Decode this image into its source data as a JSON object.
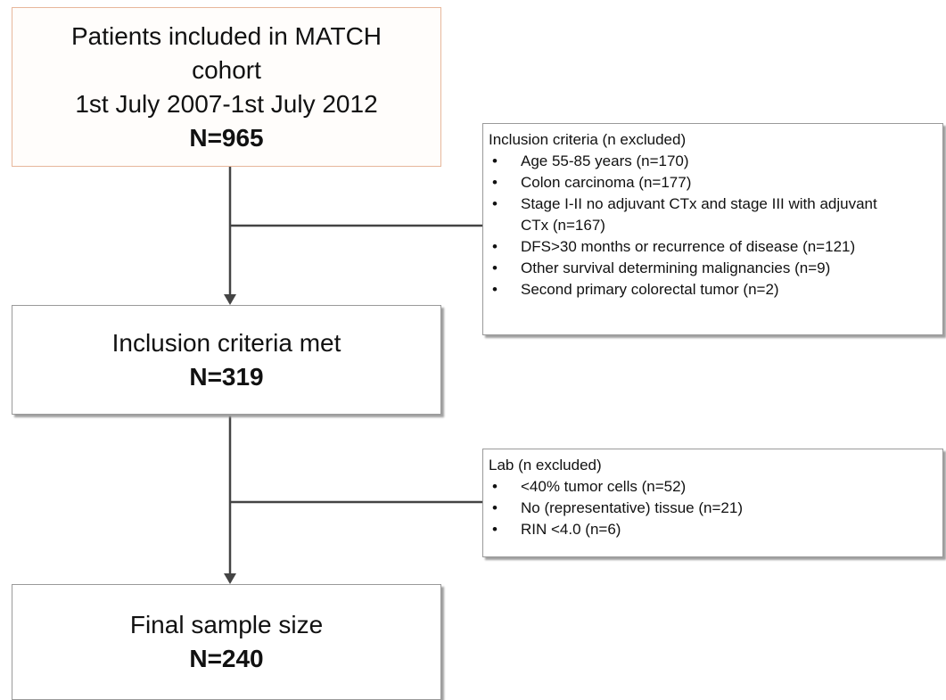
{
  "boxes": [
    {
      "lines": [
        "Patients included in MATCH",
        "cohort",
        "1st July 2007-1st July 2012"
      ],
      "count": "N=965"
    },
    {
      "lines": [
        "Inclusion criteria met"
      ],
      "count": "N=319"
    },
    {
      "lines": [
        "Final sample size"
      ],
      "count": "N=240"
    }
  ],
  "exclusions": [
    {
      "title": "Inclusion criteria (n excluded)",
      "items": [
        "Age 55-85 years (n=170)",
        "Colon carcinoma (n=177)",
        "Stage I-II no adjuvant CTx and stage III with adjuvant CTx (n=167)",
        "DFS>30 months or recurrence of disease (n=121)",
        "Other survival determining malignancies (n=9)",
        "Second primary colorectal tumor (n=2)"
      ]
    },
    {
      "title": "Lab (n excluded)",
      "items": [
        "<40% tumor cells (n=52)",
        "No (representative) tissue (n=21)",
        "RIN <4.0 (n=6)"
      ]
    }
  ]
}
